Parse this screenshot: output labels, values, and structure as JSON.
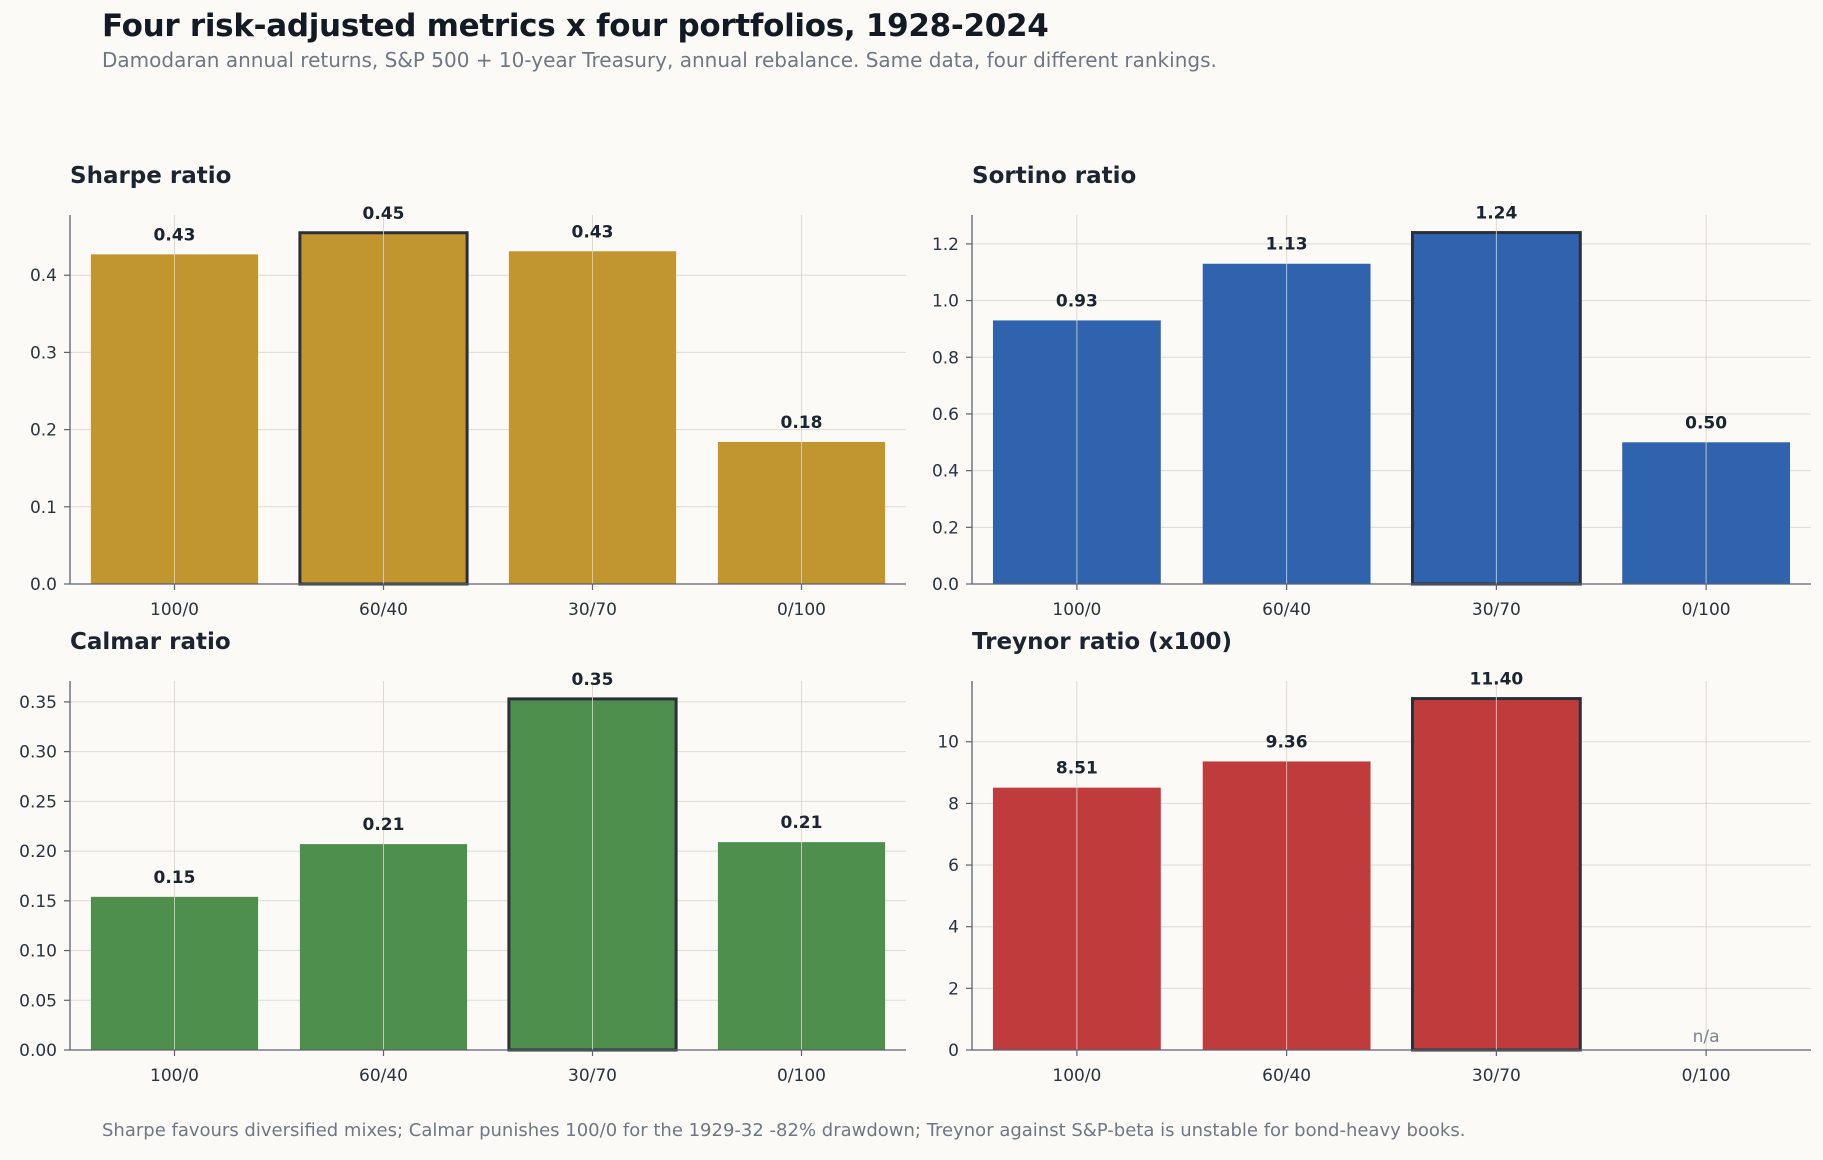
{
  "title": "Four risk-adjusted metrics x four portfolios, 1928-2024",
  "subtitle": "Damodaran annual returns, S&P 500 + 10-year Treasury, annual rebalance. Same data, four different rankings.",
  "footnote": "Sharpe favours diversified mixes; Calmar punishes 100/0 for the 1929-32 -82% drawdown; Treynor against S&P-beta is unstable for bond-heavy books.",
  "chart_data": [
    {
      "type": "bar",
      "title": "Sharpe ratio",
      "categories": [
        "100/0",
        "60/40",
        "30/70",
        "0/100"
      ],
      "values": [
        0.427,
        0.455,
        0.431,
        0.184
      ],
      "value_labels": [
        "0.43",
        "0.45",
        "0.43",
        "0.18"
      ],
      "yticks": [
        0.0,
        0.1,
        0.2,
        0.3,
        0.4
      ],
      "ytick_labels": [
        "0.0",
        "0.1",
        "0.2",
        "0.3",
        "0.4"
      ],
      "ylim": [
        0,
        0.478
      ],
      "highlight_index": 1,
      "color": "#c1962e",
      "grid": true
    },
    {
      "type": "bar",
      "title": "Sortino ratio",
      "categories": [
        "100/0",
        "60/40",
        "30/70",
        "0/100"
      ],
      "values": [
        0.93,
        1.13,
        1.24,
        0.5
      ],
      "value_labels": [
        "0.93",
        "1.13",
        "1.24",
        "0.50"
      ],
      "yticks": [
        0.0,
        0.2,
        0.4,
        0.6,
        0.8,
        1.0,
        1.2
      ],
      "ytick_labels": [
        "0.0",
        "0.2",
        "0.4",
        "0.6",
        "0.8",
        "1.0",
        "1.2"
      ],
      "ylim": [
        0,
        1.302
      ],
      "highlight_index": 2,
      "color": "#3063ae",
      "grid": true
    },
    {
      "type": "bar",
      "title": "Calmar ratio",
      "categories": [
        "100/0",
        "60/40",
        "30/70",
        "0/100"
      ],
      "values": [
        0.154,
        0.207,
        0.353,
        0.209
      ],
      "value_labels": [
        "0.15",
        "0.21",
        "0.35",
        "0.21"
      ],
      "yticks": [
        0.0,
        0.05,
        0.1,
        0.15,
        0.2,
        0.25,
        0.3,
        0.35
      ],
      "ytick_labels": [
        "0.00",
        "0.05",
        "0.10",
        "0.15",
        "0.20",
        "0.25",
        "0.30",
        "0.35"
      ],
      "ylim": [
        0,
        0.371
      ],
      "highlight_index": 2,
      "color": "#4e8f4e",
      "grid": true
    },
    {
      "type": "bar",
      "title": "Treynor ratio (x100)",
      "categories": [
        "100/0",
        "60/40",
        "30/70",
        "0/100"
      ],
      "values": [
        8.51,
        9.36,
        11.4,
        null
      ],
      "value_labels": [
        "8.51",
        "9.36",
        "11.40",
        "n/a"
      ],
      "yticks": [
        0,
        2,
        4,
        6,
        8,
        10
      ],
      "ytick_labels": [
        "0",
        "2",
        "4",
        "6",
        "8",
        "10"
      ],
      "ylim": [
        0,
        11.97
      ],
      "highlight_index": 2,
      "color": "#c03b3b",
      "grid": true
    }
  ]
}
